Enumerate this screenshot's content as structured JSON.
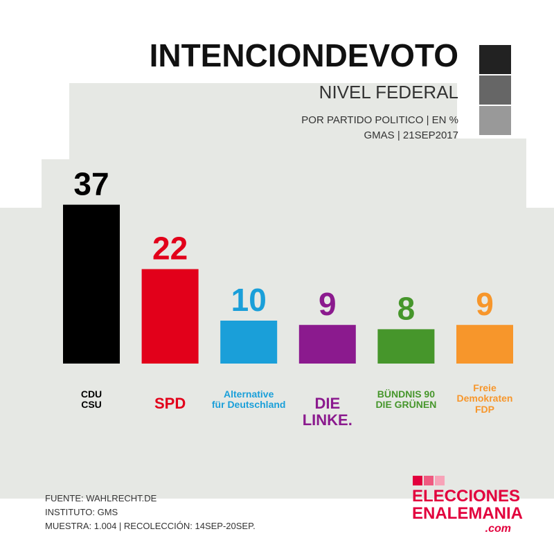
{
  "chart_data": {
    "type": "bar",
    "title": "INTENCIONDEVOTO",
    "subtitle": "NIVEL FEDERAL",
    "notes": [
      "POR PARTIDO POLITICO | EN %",
      "GMAS | 21SEP2017"
    ],
    "categories": [
      "CDU\nCSU",
      "SPD",
      "Alternative\nfür Deutschland",
      "DIE LINKE.",
      "BÜNDNIS 90\nDIE GRÜNEN",
      "Freie\nDemokraten\nFDP"
    ],
    "values": [
      37,
      22,
      10,
      9,
      8,
      9
    ],
    "colors": [
      "#000000",
      "#e2001a",
      "#1a9fd9",
      "#8b1a8e",
      "#46962b",
      "#f7962b"
    ]
  },
  "footer": {
    "sources": [
      "FUENTE: WAHLRECHT.DE",
      "INSTITUTO: GMS",
      "MUESTRA: 1.004 | RECOLECCIÓN: 14SEP-20SEP."
    ],
    "brand": [
      "ELECCIONES",
      "ENALEMANIA",
      ".com"
    ]
  }
}
